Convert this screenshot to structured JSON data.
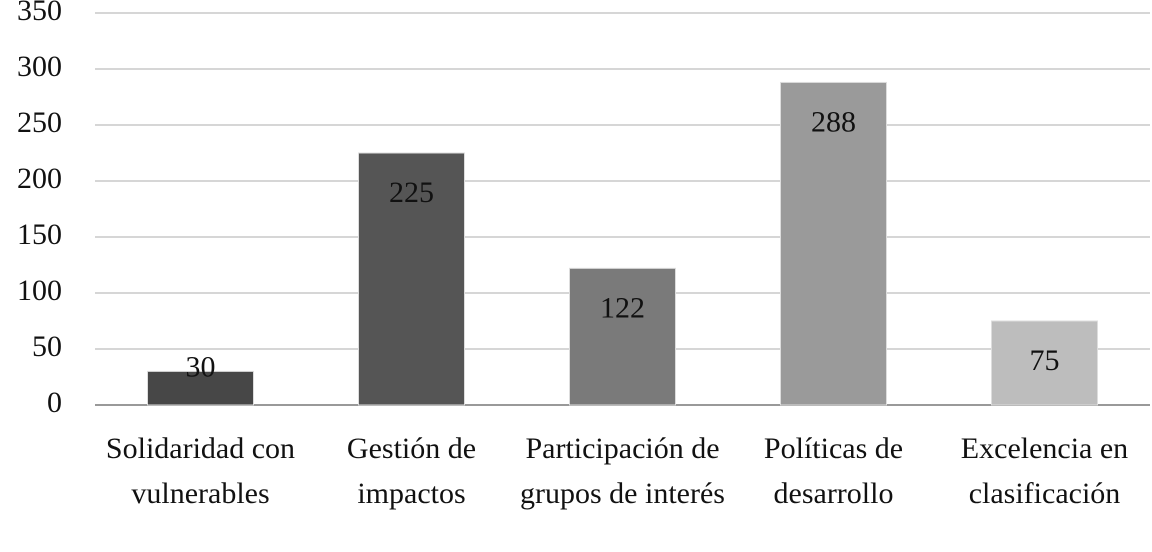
{
  "chart_data": {
    "type": "bar",
    "categories": [
      "Solidaridad con vulnerables",
      "Gestión de impactos",
      "Participación de grupos de interés",
      "Políticas de desarrollo",
      "Excelencia en clasificación"
    ],
    "values": [
      30,
      225,
      122,
      288,
      75
    ],
    "colors": [
      "#474747",
      "#555555",
      "#7a7a7a",
      "#9a9a9a",
      "#bdbdbd"
    ],
    "ylim": [
      0,
      350
    ],
    "yticks": [
      0,
      50,
      100,
      150,
      200,
      250,
      300,
      350
    ],
    "grid": true
  }
}
